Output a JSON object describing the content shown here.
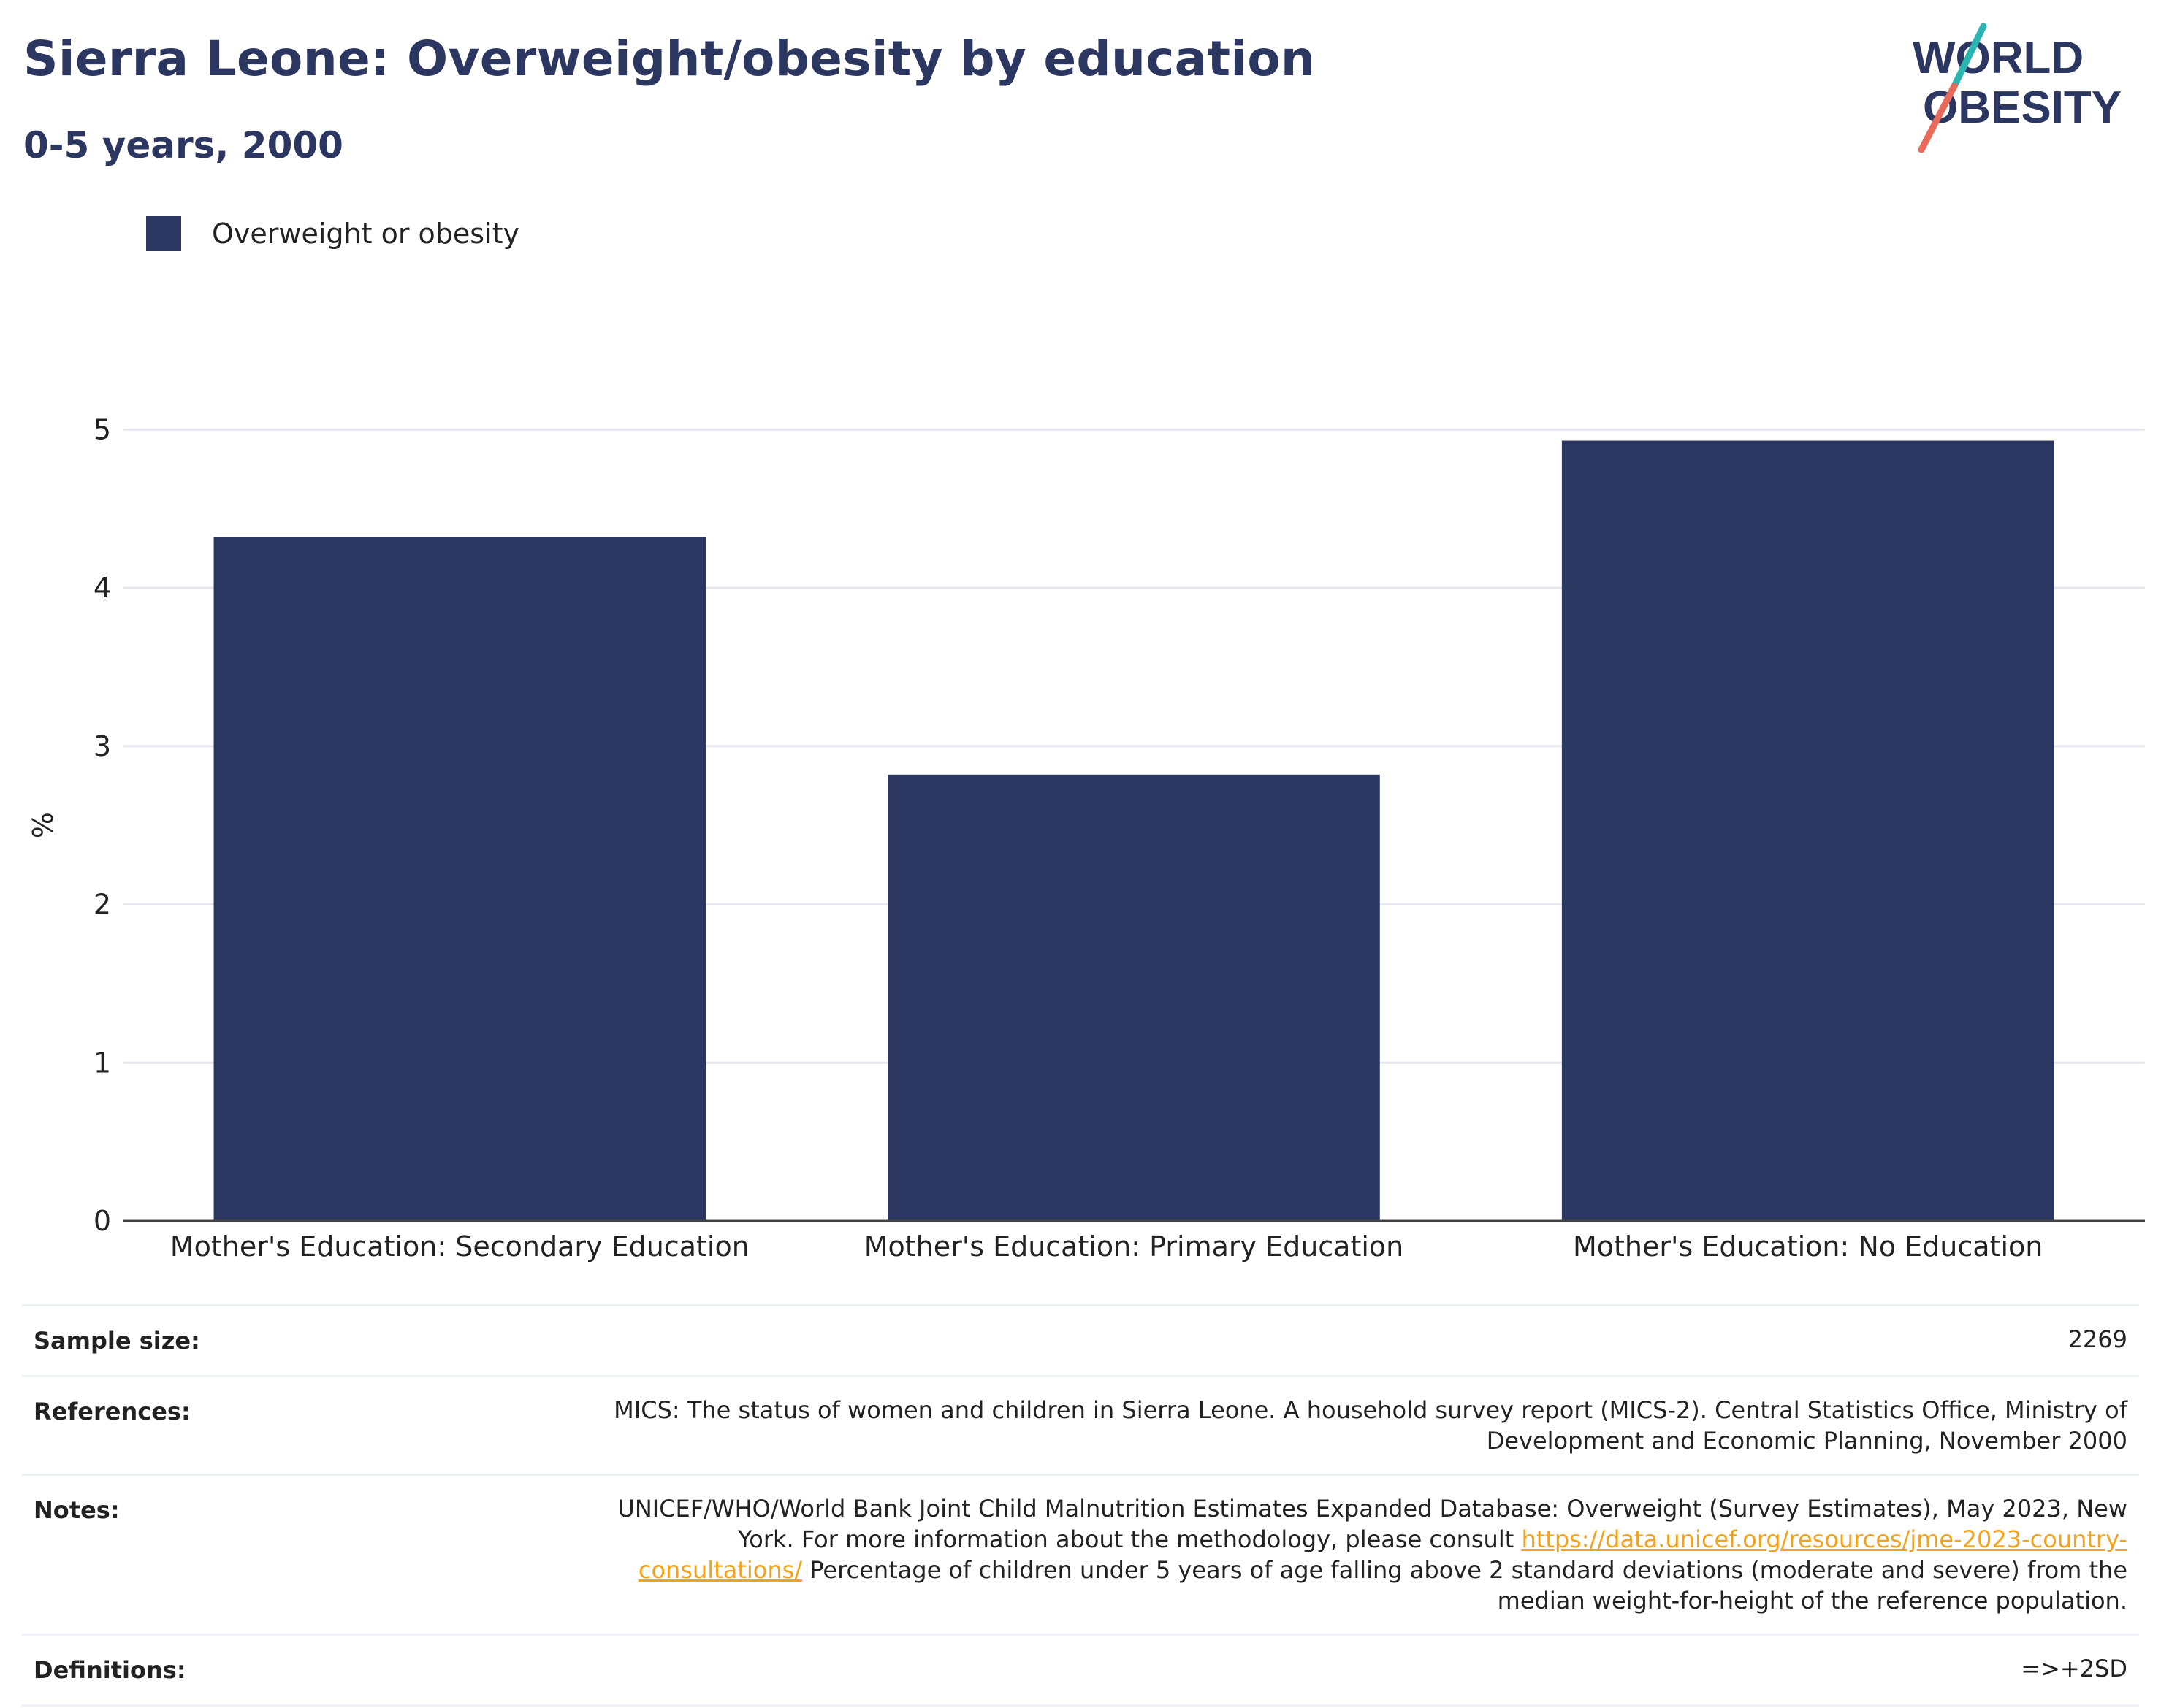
{
  "header": {
    "title": "Sierra Leone: Overweight/obesity by education",
    "subtitle": "0-5 years, 2000"
  },
  "logo": {
    "line1": "WORLD",
    "line2": "OBESITY",
    "accent_teal": "#2bb5b0",
    "accent_coral": "#e86a5c"
  },
  "colors": {
    "bar": "#2b3661",
    "title": "#2b3661",
    "link": "#f2a31b"
  },
  "chart_data": {
    "type": "bar",
    "categories": [
      "Mother's Education: Secondary Education",
      "Mother's Education: Primary Education",
      "Mother's Education: No Education"
    ],
    "series": [
      {
        "name": "Overweight or obesity",
        "values": [
          4.32,
          2.82,
          4.93
        ]
      }
    ],
    "ylabel": "%",
    "ylim": [
      0,
      5.5
    ],
    "yticks": [
      0,
      1,
      2,
      3,
      4,
      5
    ],
    "grid": true,
    "legend_position": "top-left"
  },
  "info": {
    "sample_size_label": "Sample size:",
    "sample_size_value": "2269",
    "references_label": "References:",
    "references_value": "MICS: The status of women and children in Sierra Leone. A household survey report (MICS-2). Central Statistics Office, Ministry of Development and Economic Planning, November 2000",
    "notes_label": "Notes:",
    "notes_pre": "UNICEF/WHO/World Bank Joint Child Malnutrition Estimates Expanded Database: Overweight (Survey Estimates), May 2023, New York. For more information about the methodology, please consult ",
    "notes_link": "https://data.unicef.org/resources/jme-2023-country-consultations/",
    "notes_post": " Percentage of children under 5 years of age falling above 2 standard deviations (moderate and severe) from the median weight-for-height of the reference population.",
    "definitions_label": "Definitions:",
    "definitions_value": "=>+2SD"
  }
}
